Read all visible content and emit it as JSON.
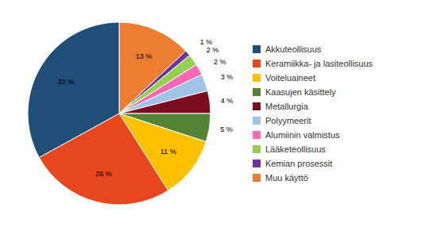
{
  "chart_data": {
    "type": "pie",
    "categories": [
      "Muu käyttö",
      "Kemian prosessit",
      "Lääketeollisuus",
      "Alumiinin valmistus",
      "Polyymeerit",
      "Metallurgia",
      "Kaasujen käsittely",
      "Voiteluaineet",
      "Keramiikka- ja lasiteollisuus",
      "Akkuteollisuus"
    ],
    "values": [
      13,
      1,
      2,
      2,
      3,
      4,
      5,
      11,
      26,
      33
    ],
    "value_labels": [
      "13 %",
      "1 %",
      "2 %",
      "2 %",
      "3 %",
      "4 %",
      "5 %",
      "11 %",
      "26 %",
      "33 %"
    ],
    "colors": [
      "#ED7D31",
      "#7030A0",
      "#92D050",
      "#FF69B4",
      "#9DC3E6",
      "#7B0D1E",
      "#548235",
      "#FFC000",
      "#E8471E",
      "#1F4E79"
    ],
    "data_labels": true,
    "legend": "right"
  }
}
